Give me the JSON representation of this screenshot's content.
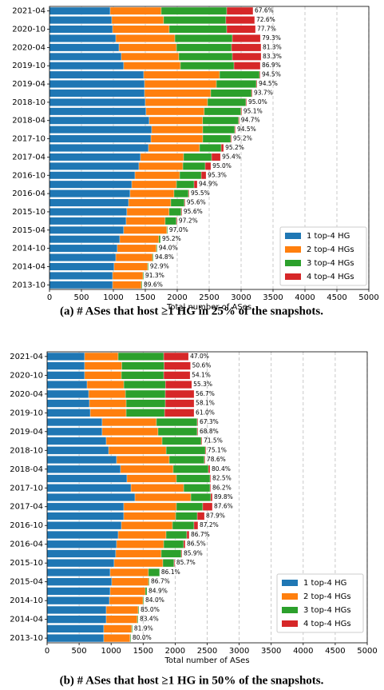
{
  "chart_data": [
    {
      "type": "stacked-barh",
      "caption": "(a) # ASes that host ≥1 HG in 25% of the snapshots.",
      "xlabel": "Total number of ASes",
      "categories": [
        "2013-10",
        null,
        "2014-04",
        null,
        "2014-10",
        null,
        "2015-04",
        null,
        "2015-10",
        null,
        "2016-04",
        null,
        "2016-10",
        null,
        "2017-04",
        null,
        "2017-10",
        null,
        "2018-04",
        null,
        "2018-10",
        null,
        "2019-04",
        null,
        "2019-10",
        null,
        "2020-04",
        null,
        "2020-10",
        null,
        "2021-04"
      ],
      "series": [
        {
          "name": "1 top-4 HG",
          "color": "#1f77b4",
          "values": [
            988,
            988,
            1012,
            1038,
            1062,
            1100,
            1162,
            1200,
            1212,
            1238,
            1262,
            1288,
            1338,
            1400,
            1425,
            1550,
            1588,
            1600,
            1562,
            1512,
            1500,
            1488,
            1488,
            1475,
            1162,
            1125,
            1088,
            1038,
            988,
            975,
            950
          ]
        },
        {
          "name": "2 top-4 HGs",
          "color": "#ff7f0e",
          "values": [
            450,
            475,
            525,
            575,
            612,
            612,
            675,
            612,
            662,
            662,
            688,
            700,
            700,
            688,
            675,
            800,
            812,
            800,
            837,
            912,
            975,
            1037,
            1125,
            1188,
            888,
            900,
            900,
            925,
            887,
            812,
            800
          ]
        },
        {
          "name": "3 top-4 HGs",
          "color": "#2ca02c",
          "values": [
            12,
            12,
            12,
            12,
            12,
            25,
            12,
            175,
            188,
            212,
            225,
            275,
            338,
            350,
            438,
            338,
            438,
            500,
            562,
            575,
            600,
            638,
            625,
            625,
            838,
            838,
            862,
            900,
            900,
            975,
            1025
          ]
        },
        {
          "name": "4 top-4 HGs",
          "color": "#d62728",
          "values": [
            0,
            0,
            0,
            0,
            0,
            0,
            0,
            12,
            12,
            12,
            12,
            50,
            75,
            88,
            138,
            38,
            12,
            12,
            12,
            12,
            12,
            12,
            12,
            12,
            412,
            450,
            462,
            438,
            450,
            450,
            412
          ]
        }
      ],
      "bar_labels": [
        "89.6%",
        "91.3%",
        "92.9%",
        "94.8%",
        "94.0%",
        "95.2%",
        "97.0%",
        "97.2%",
        "95.6%",
        "95.6%",
        "95.5%",
        "94.9%",
        "95.3%",
        "95.0%",
        "95.4%",
        "95.2%",
        "95.2%",
        "94.5%",
        "94.7%",
        "95.1%",
        "95.0%",
        "93.7%",
        "94.5%",
        "94.5%",
        "86.9%",
        "83.3%",
        "81.3%",
        "79.3%",
        "77.7%",
        "72.6%",
        "67.6%"
      ],
      "xlim": [
        0,
        5000
      ],
      "xticks": [
        0,
        500,
        1000,
        1500,
        2000,
        2500,
        3000,
        3500,
        4000,
        4500,
        5000
      ],
      "grid": true,
      "legend": "lower right"
    },
    {
      "type": "stacked-barh",
      "caption": "(b) # ASes that host ≥1 HG in 50% of the snapshots.",
      "xlabel": "Total number of ASes",
      "categories": [
        "2013-10",
        null,
        "2014-04",
        null,
        "2014-10",
        null,
        "2015-04",
        null,
        "2015-10",
        null,
        "2016-04",
        null,
        "2016-10",
        null,
        "2017-04",
        null,
        "2017-10",
        null,
        "2018-04",
        null,
        "2018-10",
        null,
        "2019-04",
        null,
        "2019-10",
        null,
        "2020-04",
        null,
        "2020-10",
        null,
        "2021-04"
      ],
      "series": [
        {
          "name": "1 top-4 HG",
          "color": "#1f77b4",
          "values": [
            885,
            885,
            923,
            923,
            973,
            985,
            1010,
            985,
            1047,
            1072,
            1085,
            1110,
            1160,
            1197,
            1197,
            1372,
            1310,
            1247,
            1147,
            1085,
            961,
            923,
            860,
            860,
            674,
            661,
            649,
            624,
            586,
            586,
            586
          ]
        },
        {
          "name": "2 top-4 HGs",
          "color": "#ff7f0e",
          "values": [
            411,
            436,
            486,
            499,
            524,
            549,
            574,
            598,
            761,
            711,
            736,
            748,
            798,
            811,
            823,
            873,
            823,
            773,
            823,
            823,
            898,
            873,
            873,
            848,
            561,
            574,
            574,
            574,
            574,
            580,
            524
          ]
        },
        {
          "name": "3 top-4 HGs",
          "color": "#2ca02c",
          "values": [
            12,
            12,
            12,
            12,
            12,
            25,
            12,
            174,
            174,
            312,
            311,
            324,
            336,
            337,
            411,
            311,
            411,
            524,
            549,
            548,
            611,
            611,
            611,
            636,
            599,
            611,
            623,
            649,
            661,
            661,
            711
          ]
        },
        {
          "name": "4 top-4 HGs",
          "color": "#d62728",
          "values": [
            0,
            0,
            0,
            0,
            0,
            0,
            0,
            0,
            12,
            12,
            25,
            37,
            62,
            112,
            150,
            25,
            12,
            12,
            25,
            12,
            12,
            12,
            12,
            12,
            461,
            449,
            449,
            412,
            412,
            412,
            387
          ]
        }
      ],
      "bar_labels": [
        "80.0%",
        "81.9%",
        "83.4%",
        "85.0%",
        "84.0%",
        "84.9%",
        "86.7%",
        "86.1%",
        "85.7%",
        "85.9%",
        "86.5%",
        "86.7%",
        "87.2%",
        "87.9%",
        "87.6%",
        "89.8%",
        "86.2%",
        "82.5%",
        "80.4%",
        "78.6%",
        "75.1%",
        "71.5%",
        "68.8%",
        "67.3%",
        "61.0%",
        "58.1%",
        "56.7%",
        "55.3%",
        "54.1%",
        "50.6%",
        "47.0%"
      ],
      "xlim": [
        0,
        5000
      ],
      "xticks": [
        0,
        500,
        1000,
        1500,
        2000,
        2500,
        3000,
        3500,
        4000,
        4500,
        5000
      ],
      "grid": true,
      "legend": "lower right"
    }
  ]
}
